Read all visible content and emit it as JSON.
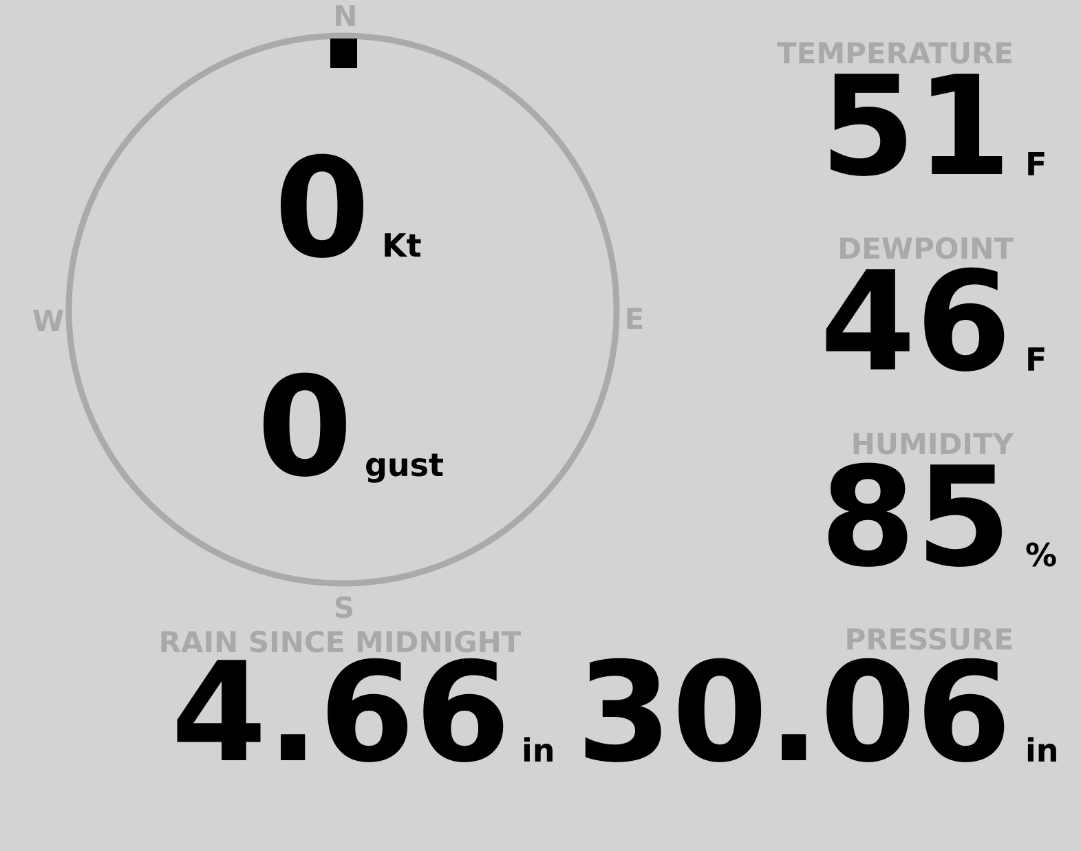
{
  "compass": {
    "north": "N",
    "east": "E",
    "south": "S",
    "west": "W"
  },
  "wind": {
    "speed": 0,
    "speed_unit": "Kt",
    "gust": 0,
    "gust_unit": "gust"
  },
  "readings": [
    {
      "label": "TEMPERATURE",
      "value": 51,
      "unit": "F"
    },
    {
      "label": "DEWPOINT",
      "value": 46,
      "unit": "F"
    },
    {
      "label": "HUMIDITY",
      "value": 85,
      "unit": "%"
    },
    {
      "label": "PRESSURE",
      "value": 30.06,
      "unit": "in"
    }
  ],
  "rain": {
    "label": "RAIN SINCE MIDNIGHT",
    "value": 4.66,
    "unit": "in"
  }
}
